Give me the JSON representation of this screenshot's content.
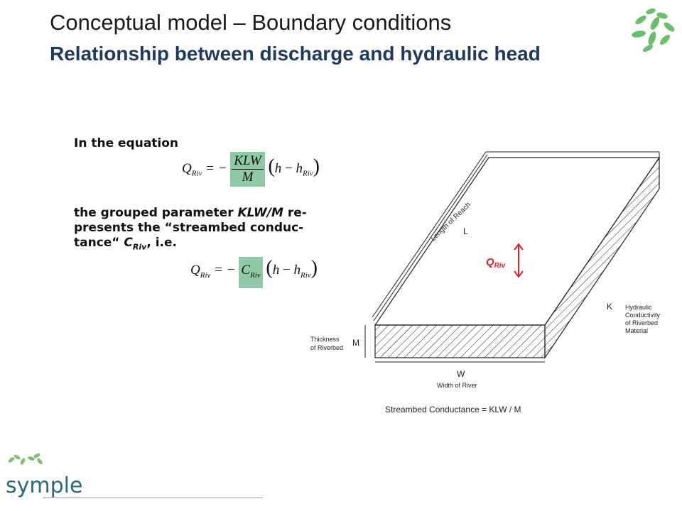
{
  "header": {
    "title": "Conceptual model – Boundary conditions",
    "subtitle": "Relationship between discharge and hydraulic head"
  },
  "body": {
    "intro": "In the equation",
    "explain_prefix": "the grouped parameter ",
    "explain_param": "KLW/M",
    "explain_mid": " re-presents the “streambed conduc-tance“ ",
    "explain_symbol": "C",
    "explain_symbol_sub": "Riv",
    "explain_suffix": ", i.e."
  },
  "equation1": {
    "lhs": "Q",
    "lhs_sub": "Riv",
    "sign": "= −",
    "num": "KLW",
    "den": "M",
    "paren_open": "(",
    "h": "h",
    "minus": " − ",
    "h2": "h",
    "h2_sub": "Riv",
    "paren_close": ")"
  },
  "equation2": {
    "lhs": "Q",
    "lhs_sub": "Riv",
    "sign": "= −",
    "c": "C",
    "c_sub": "Riv",
    "paren_open": "(",
    "h": "h",
    "minus": " − ",
    "h2": "h",
    "h2_sub": "Riv",
    "paren_close": ")"
  },
  "diagram": {
    "length_label": "Length of Reach",
    "length_symbol": "L",
    "q_label": "Q",
    "q_sub": "Riv",
    "k_symbol": "K",
    "k_label_lines": [
      "Hydraulic",
      "Conductivity",
      "of Riverbed",
      "Material"
    ],
    "m_symbol": "M",
    "m_label_lines": [
      "Thickness",
      "of Riverbed"
    ],
    "w_symbol": "W",
    "w_label": "Width of River",
    "caption": "Streambed Conductance = KLW / M",
    "accent_color": "#e02020"
  },
  "logo": {
    "text": "symple"
  }
}
